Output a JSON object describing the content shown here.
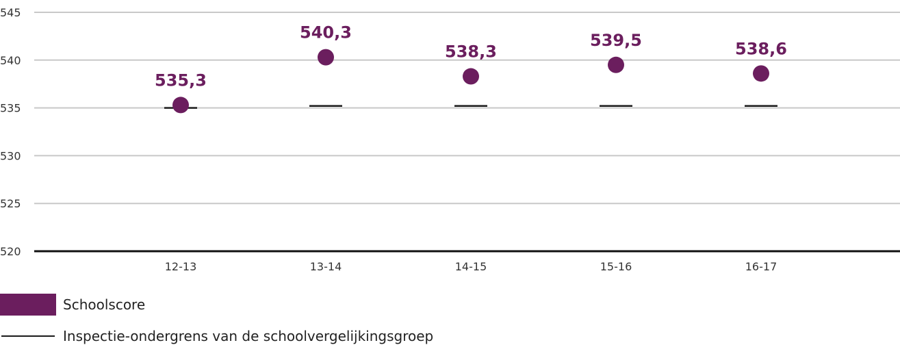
{
  "chart_data": {
    "type": "scatter",
    "title": "",
    "xlabel": "",
    "ylabel": "",
    "categories": [
      "12-13",
      "13-14",
      "14-15",
      "15-16",
      "16-17"
    ],
    "ylim": [
      520,
      545
    ],
    "yticks": [
      "520",
      "525",
      "530",
      "535",
      "540",
      "545"
    ],
    "series": [
      {
        "name": "Schoolscore",
        "values": [
          535.3,
          540.3,
          538.3,
          539.5,
          538.6
        ],
        "labels": [
          "535,3",
          "540,3",
          "538,3",
          "539,5",
          "538,6"
        ],
        "color": "#6b1e5e"
      },
      {
        "name": "Inspectie-ondergrens van de schoolvergelijkingsgroep",
        "values": [
          535.0,
          535.2,
          535.2,
          535.2,
          535.2
        ],
        "color": "#1a1a1a"
      }
    ],
    "grid": true,
    "legend_position": "bottom-left"
  },
  "legend": {
    "items": [
      {
        "label": "Schoolscore",
        "color": "#6b1e5e"
      },
      {
        "label": "Inspectie-ondergrens van de schoolvergelijkingsgroep",
        "color": "#1a1a1a"
      }
    ]
  }
}
